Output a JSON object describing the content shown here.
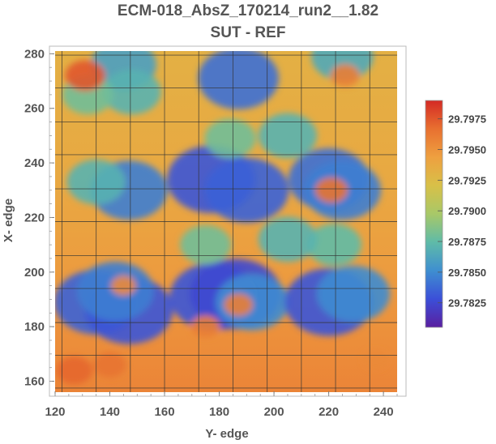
{
  "chart_data": {
    "type": "heatmap",
    "title": "ECM-018_AbsZ_170214_run2__1.82",
    "subtitle": "SUT - REF",
    "xlabel": "Y- edge",
    "ylabel": "X- edge",
    "xlim": [
      120,
      245
    ],
    "ylim": [
      156,
      281
    ],
    "x_ticks": [
      120,
      140,
      160,
      180,
      200,
      220,
      240
    ],
    "y_ticks": [
      160,
      180,
      200,
      220,
      240,
      260,
      280
    ],
    "grid": true,
    "grid_x": [
      122.5,
      135,
      147.5,
      160,
      172.5,
      185,
      197.5,
      210,
      222.5,
      235
    ],
    "grid_y": [
      157.5,
      169.5,
      181.5,
      194,
      206,
      218.5,
      230.5,
      243,
      255,
      267.5,
      279.5
    ],
    "colorbar": {
      "min": 29.7805,
      "max": 29.799,
      "ticks": [
        29.7975,
        29.795,
        29.7925,
        29.79,
        29.7875,
        29.785,
        29.7825
      ],
      "tick_labels": [
        "29.7975",
        "29.7950",
        "29.7925",
        "29.7900",
        "29.7875",
        "29.7850",
        "29.7825"
      ],
      "colors": [
        "#5a1fa0",
        "#3b4fd8",
        "#3f8fd0",
        "#5fbba8",
        "#a8c868",
        "#d8c048",
        "#eea040",
        "#e87030",
        "#d42a25"
      ]
    },
    "base_value": 29.7935,
    "features": [
      {
        "type": "low",
        "x": 135,
        "y": 189,
        "value": 29.7835
      },
      {
        "type": "low",
        "x": 147,
        "y": 186,
        "value": 29.783
      },
      {
        "type": "low",
        "x": 142,
        "y": 193,
        "value": 29.7845
      },
      {
        "type": "low",
        "x": 178,
        "y": 191,
        "value": 29.783
      },
      {
        "type": "low",
        "x": 186,
        "y": 192,
        "value": 29.7825
      },
      {
        "type": "low",
        "x": 192,
        "y": 189,
        "value": 29.785
      },
      {
        "type": "low",
        "x": 220,
        "y": 189,
        "value": 29.783
      },
      {
        "type": "low",
        "x": 229,
        "y": 192,
        "value": 29.785
      },
      {
        "type": "low",
        "x": 177,
        "y": 234,
        "value": 29.783
      },
      {
        "type": "low",
        "x": 190,
        "y": 230,
        "value": 29.7835
      },
      {
        "type": "low",
        "x": 220,
        "y": 234,
        "value": 29.784
      },
      {
        "type": "low",
        "x": 225,
        "y": 230,
        "value": 29.7845
      },
      {
        "type": "low",
        "x": 147,
        "y": 230,
        "value": 29.7845
      },
      {
        "type": "low",
        "x": 135,
        "y": 233,
        "value": 29.787
      },
      {
        "type": "low",
        "x": 187,
        "y": 271,
        "value": 29.784
      },
      {
        "type": "low",
        "x": 225,
        "y": 279,
        "value": 29.7865
      },
      {
        "type": "low",
        "x": 145,
        "y": 276,
        "value": 29.786
      },
      {
        "type": "low",
        "x": 148,
        "y": 266,
        "value": 29.787
      },
      {
        "type": "low",
        "x": 205,
        "y": 250,
        "value": 29.787
      },
      {
        "type": "low",
        "x": 184,
        "y": 249,
        "value": 29.788
      },
      {
        "type": "low",
        "x": 222,
        "y": 210,
        "value": 29.7875
      },
      {
        "type": "low",
        "x": 175,
        "y": 210,
        "value": 29.788
      },
      {
        "type": "low",
        "x": 132,
        "y": 265,
        "value": 29.788
      },
      {
        "type": "low",
        "x": 205,
        "y": 212,
        "value": 29.787
      },
      {
        "type": "high",
        "x": 131,
        "y": 272,
        "value": 29.7975
      },
      {
        "type": "high",
        "x": 127,
        "y": 164,
        "value": 29.797
      },
      {
        "type": "high",
        "x": 140,
        "y": 166,
        "value": 29.7965
      },
      {
        "type": "high",
        "x": 175,
        "y": 180,
        "value": 29.796
      },
      {
        "type": "high",
        "x": 187,
        "y": 188,
        "value": 29.796
      },
      {
        "type": "high",
        "x": 221,
        "y": 230,
        "value": 29.7965
      },
      {
        "type": "high",
        "x": 226,
        "y": 272,
        "value": 29.796
      },
      {
        "type": "high",
        "x": 145,
        "y": 195,
        "value": 29.7955
      },
      {
        "type": "high",
        "x": 237,
        "y": 168,
        "value": 29.7955
      }
    ]
  }
}
